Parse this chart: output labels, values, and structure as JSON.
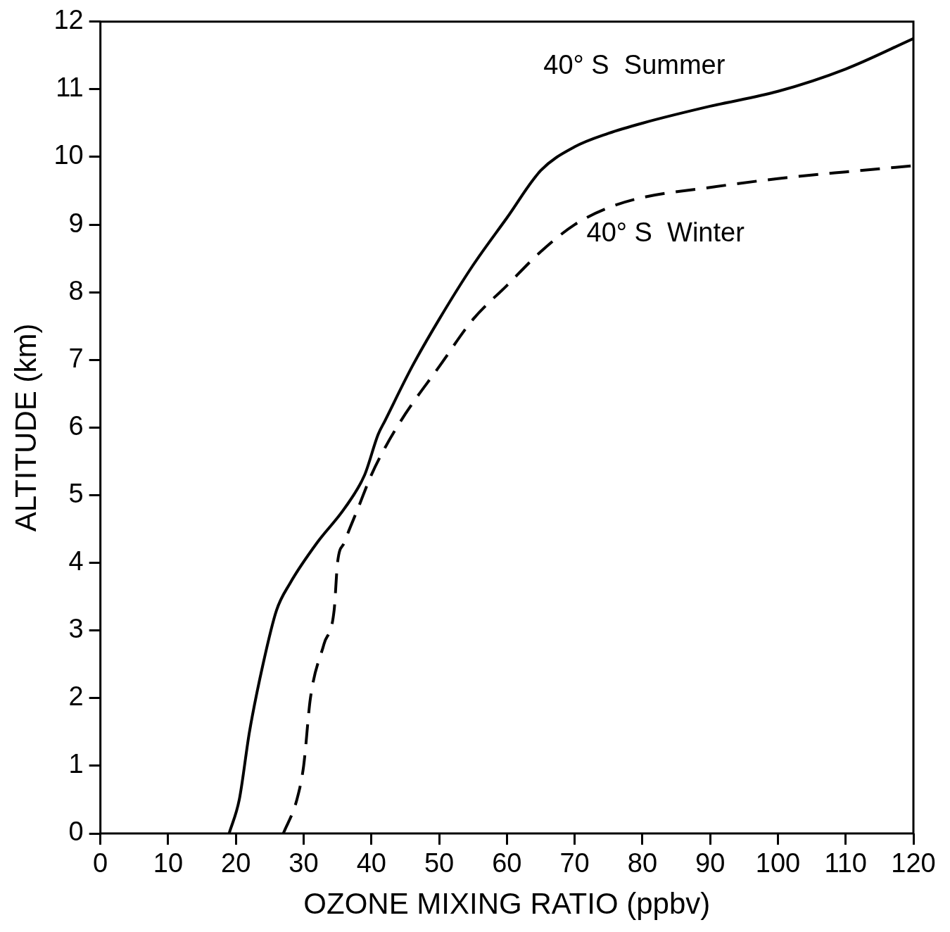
{
  "chart_data": {
    "type": "line",
    "xlabel": "OZONE MIXING RATIO (ppbv)",
    "ylabel": "ALTITUDE (km)",
    "xlim": [
      0,
      120
    ],
    "xticks": [
      0,
      10,
      20,
      30,
      40,
      50,
      60,
      70,
      80,
      90,
      100,
      110,
      120
    ],
    "ylim": [
      0,
      12
    ],
    "yticks": [
      0,
      1,
      2,
      3,
      4,
      5,
      6,
      7,
      8,
      9,
      10,
      11,
      12
    ],
    "grid": false,
    "legend": false,
    "marker": "none",
    "series": [
      {
        "name": "40° S  Summer",
        "color": "#000000",
        "line_style": "solid",
        "x": [
          19,
          20.5,
          22,
          24,
          26,
          28,
          32,
          36,
          39,
          41,
          42,
          46,
          50,
          55,
          60,
          65,
          70,
          75,
          80,
          90,
          100,
          110,
          120
        ],
        "values": [
          0,
          0.5,
          1.5,
          2.5,
          3.3,
          3.7,
          4.3,
          4.8,
          5.3,
          5.9,
          6.1,
          6.9,
          7.6,
          8.4,
          9.1,
          9.8,
          10.15,
          10.35,
          10.5,
          10.75,
          10.97,
          11.3,
          11.75
        ]
      },
      {
        "name": "40° S  Winter",
        "color": "#000000",
        "line_style": "dashed",
        "x": [
          27,
          29,
          30,
          31,
          33,
          34.5,
          35,
          36,
          38,
          40,
          42,
          45,
          50,
          55,
          60,
          65,
          70,
          75,
          80,
          90,
          100,
          110,
          120
        ],
        "values": [
          0,
          0.5,
          1,
          2,
          2.8,
          3.3,
          4,
          4.3,
          4.8,
          5.3,
          5.7,
          6.2,
          6.9,
          7.6,
          8.1,
          8.6,
          9.0,
          9.25,
          9.4,
          9.55,
          9.68,
          9.78,
          9.87
        ]
      }
    ]
  }
}
